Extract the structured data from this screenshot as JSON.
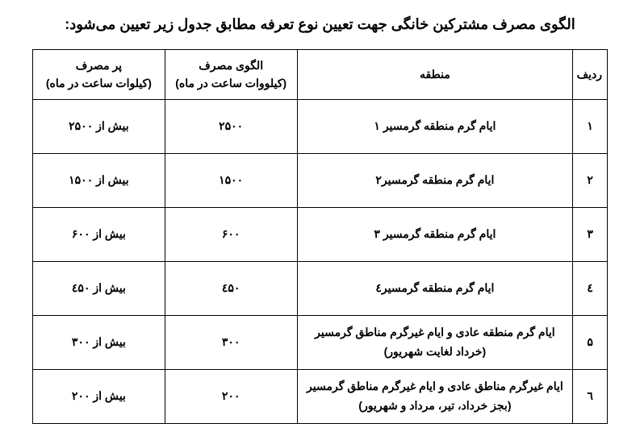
{
  "title": "الگوی مصرف مشترکین خانگی جهت تعیین نوع تعرفه مطابق جدول زیر تعیین می‌شود:",
  "headers": {
    "index": "ردیف",
    "region": "منطقه",
    "pattern": "الگوی مصرف\n(کیلووات ساعت در ماه)",
    "high": "پر مصرف\n(کیلوات ساعت در ماه)"
  },
  "rows": [
    {
      "idx": "۱",
      "region": "ایام گرم منطقه گرمسیر ۱",
      "pattern": "۲۵۰۰",
      "high": "بیش از ۲۵۰۰"
    },
    {
      "idx": "۲",
      "region": "ایام گرم منطقه گرمسیر۲",
      "pattern": "۱۵۰۰",
      "high": "بیش از ۱۵۰۰"
    },
    {
      "idx": "۳",
      "region": "ایام گرم منطقه گرمسیر ۳",
      "pattern": "۶۰۰",
      "high": "بیش از ۶۰۰"
    },
    {
      "idx": "٤",
      "region": "ایام گرم منطقه گرمسیر٤",
      "pattern": "٤۵۰",
      "high": "بیش از ٤۵۰"
    },
    {
      "idx": "۵",
      "region": "ایام گرم منطقه عادی و ایام غیرگرم مناطق گرمسیر\n(خرداد لغایت شهریور)",
      "pattern": "۳۰۰",
      "high": "بیش از ۳۰۰"
    },
    {
      "idx": "٦",
      "region": "ایام غیرگرم مناطق عادی و ایام غیرگرم مناطق گرمسیر (بجز خرداد، تیر، مرداد و شهریور)",
      "pattern": "۲۰۰",
      "high": "بیش از ۲۰۰"
    }
  ]
}
